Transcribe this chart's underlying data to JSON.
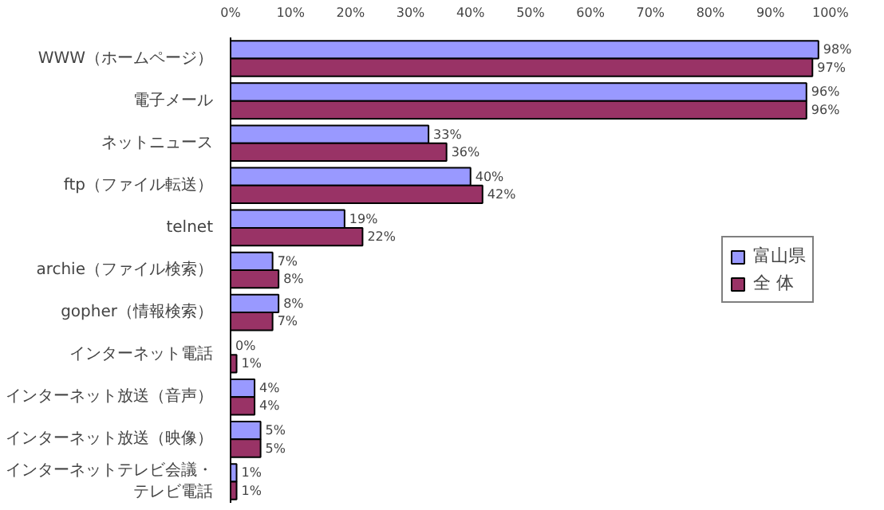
{
  "chart_data": {
    "type": "bar",
    "orientation": "horizontal",
    "categories": [
      "WWW（ホームページ）",
      "電子メール",
      "ネットニュース",
      "ftp（ファイル転送）",
      "telnet",
      "archie（ファイル検索）",
      "gopher（情報検索）",
      "インターネット電話",
      "インターネット放送（音声）",
      "インターネット放送（映像）",
      "インターネットテレビ会議・テレビ電話"
    ],
    "series": [
      {
        "name": "富山県",
        "color": "#9999ff",
        "values": [
          98,
          96,
          33,
          40,
          19,
          7,
          8,
          0,
          4,
          5,
          1
        ],
        "value_labels": [
          "98%",
          "96%",
          "33%",
          "40%",
          "19%",
          "7%",
          "8%",
          "0%",
          "4%",
          "5%",
          "1%"
        ]
      },
      {
        "name": "全 体",
        "color": "#993366",
        "values": [
          97,
          96,
          36,
          42,
          22,
          8,
          7,
          1,
          4,
          5,
          1
        ],
        "value_labels": [
          "97%",
          "96%",
          "36%",
          "42%",
          "22%",
          "8%",
          "7%",
          "1%",
          "4%",
          "5%",
          "1%"
        ]
      }
    ],
    "xlim": [
      0,
      100
    ],
    "xticks": [
      {
        "value": 0,
        "label": "0%"
      },
      {
        "value": 10,
        "label": "10%"
      },
      {
        "value": 20,
        "label": "20%"
      },
      {
        "value": 30,
        "label": "30%"
      },
      {
        "value": 40,
        "label": "40%"
      },
      {
        "value": 50,
        "label": "50%"
      },
      {
        "value": 60,
        "label": "60%"
      },
      {
        "value": 70,
        "label": "70%"
      },
      {
        "value": 80,
        "label": "80%"
      },
      {
        "value": 90,
        "label": "90%"
      },
      {
        "value": 100,
        "label": "100%"
      }
    ],
    "legend": "right",
    "grid": false
  }
}
